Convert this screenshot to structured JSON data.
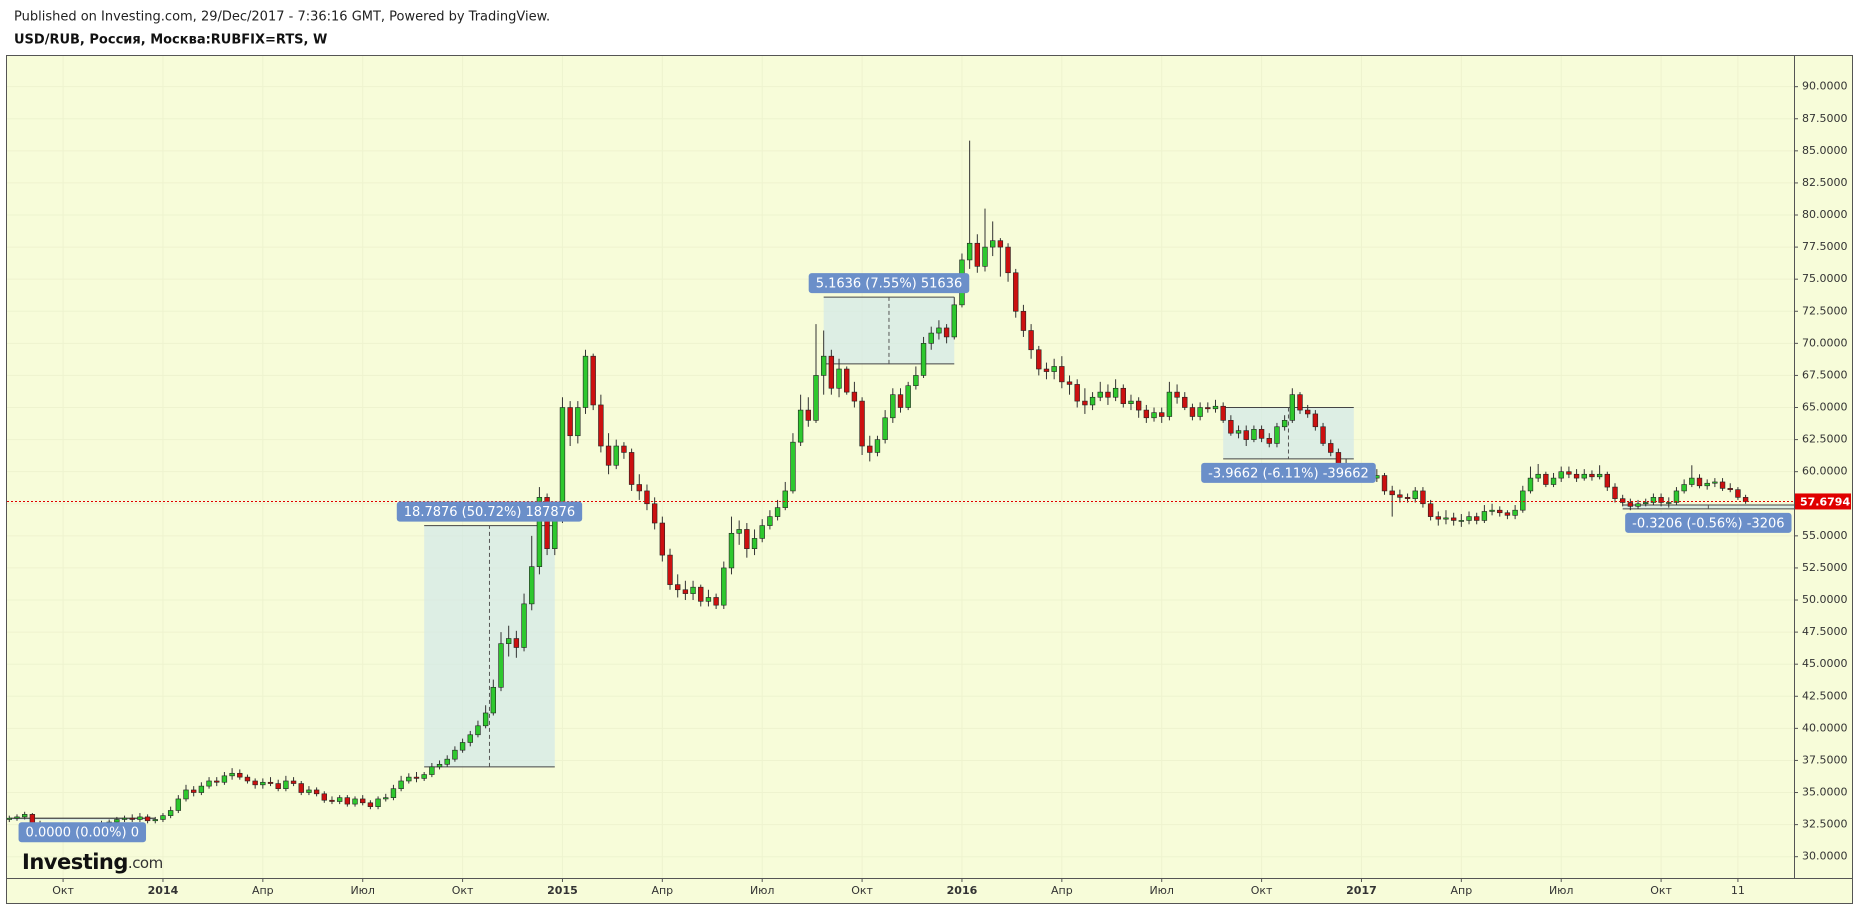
{
  "header": {
    "published": "Published on Investing.com, 29/Dec/2017 - 7:36:16 GMT, Powered by TradingView.",
    "symbol": "USD/RUB, Россия, Москва:RUBFIX=RTS, W"
  },
  "logo": {
    "main": "Investing",
    "suffix": ".com"
  },
  "chart_data": {
    "type": "candlestick",
    "open": [
      32.9,
      33.0,
      33.1,
      33.3,
      32.6,
      32.2,
      32.1,
      32.0,
      32.1,
      32.3,
      32.1,
      32.2,
      32.4,
      32.6,
      32.7,
      32.9,
      33.0,
      32.9,
      33.1,
      32.8,
      32.9,
      33.2,
      33.6,
      34.5,
      35.2,
      35.0,
      35.5,
      35.9,
      35.8,
      36.3,
      36.5,
      36.2,
      35.9,
      35.6,
      35.8,
      35.7,
      35.3,
      35.9,
      35.7,
      35.0,
      35.2,
      34.9,
      34.4,
      34.3,
      34.6,
      34.1,
      34.5,
      34.2,
      33.9,
      34.5,
      34.6,
      35.3,
      35.9,
      36.2,
      36.1,
      36.4,
      37.0,
      37.2,
      37.6,
      38.3,
      38.9,
      39.5,
      40.2,
      41.2,
      43.2,
      46.6,
      47.0,
      46.3,
      49.7,
      52.6,
      58.0,
      54.0,
      56.2,
      65.0,
      62.8,
      65.0,
      69.0,
      65.2,
      62.0,
      60.5,
      62.0,
      61.5,
      59.0,
      58.5,
      57.5,
      56.0,
      53.5,
      51.2,
      50.8,
      50.5,
      51.0,
      49.9,
      50.2,
      49.6,
      52.5,
      55.2,
      55.5,
      54.0,
      54.8,
      55.8,
      56.5,
      57.2,
      58.5,
      62.3,
      64.8,
      64.0,
      67.5,
      69.0,
      66.5,
      68.0,
      66.2,
      65.5,
      62.0,
      61.5,
      62.5,
      64.2,
      66.0,
      65.0,
      66.7,
      67.5,
      70.0,
      70.8,
      71.2,
      70.5,
      73.0,
      76.5,
      77.8,
      76.0,
      77.5,
      78.0,
      77.5,
      75.5,
      72.5,
      71.0,
      69.5,
      68.0,
      67.8,
      68.2,
      67.0,
      66.8,
      65.5,
      65.2,
      65.8,
      66.2,
      65.8,
      66.5,
      65.3,
      65.5,
      64.8,
      64.2,
      64.6,
      64.3,
      66.2,
      65.8,
      65.0,
      64.3,
      65.0,
      64.9,
      65.1,
      64.0,
      63.0,
      63.2,
      62.5,
      63.3,
      62.6,
      62.2,
      63.5,
      64.0,
      66.0,
      64.8,
      64.5,
      63.5,
      62.2,
      61.5,
      60.5,
      60.2,
      59.8,
      59.8,
      59.5,
      59.7,
      58.5,
      58.2,
      58.0,
      57.9,
      58.5,
      57.5,
      56.5,
      56.3,
      56.4,
      56.2,
      56.2,
      56.5,
      56.2,
      56.9,
      57.0,
      56.8,
      56.6,
      57.0,
      58.5,
      59.5,
      59.8,
      59.0,
      59.5,
      60.0,
      59.8,
      59.5,
      59.8,
      59.6,
      59.8,
      58.8,
      57.9,
      57.6,
      57.3,
      57.5,
      57.6,
      58.0,
      57.6,
      57.6,
      58.5,
      59.0,
      59.5,
      58.9,
      59.1,
      59.2,
      58.7,
      58.6,
      58.0
    ],
    "high": [
      33.2,
      33.3,
      33.5,
      33.4,
      32.8,
      32.4,
      32.3,
      32.4,
      32.5,
      32.5,
      32.4,
      32.6,
      32.8,
      32.9,
      33.1,
      33.2,
      33.3,
      33.4,
      33.3,
      33.1,
      33.4,
      33.9,
      34.8,
      35.6,
      35.5,
      35.8,
      36.2,
      36.2,
      36.6,
      36.9,
      36.8,
      36.4,
      36.1,
      36.1,
      36.2,
      36.0,
      36.3,
      36.2,
      35.9,
      35.5,
      35.4,
      35.1,
      34.7,
      34.8,
      34.8,
      34.7,
      34.8,
      34.4,
      34.7,
      34.9,
      35.6,
      36.3,
      36.5,
      36.6,
      36.6,
      37.3,
      37.5,
      37.9,
      38.6,
      39.2,
      39.8,
      40.6,
      41.8,
      43.8,
      47.5,
      48.0,
      47.6,
      50.5,
      55.0,
      58.8,
      58.3,
      57.0,
      65.8,
      65.5,
      65.5,
      69.5,
      69.2,
      66.0,
      63.0,
      62.5,
      62.3,
      61.8,
      59.8,
      59.0,
      58.0,
      56.5,
      54.0,
      52.0,
      51.5,
      51.5,
      51.2,
      50.8,
      50.5,
      53.0,
      56.5,
      56.2,
      56.0,
      55.5,
      56.3,
      57.0,
      57.8,
      59.2,
      63.0,
      66.0,
      65.8,
      71.5,
      71.0,
      69.5,
      68.8,
      68.2,
      67.0,
      65.8,
      62.8,
      62.8,
      64.8,
      66.5,
      66.5,
      67.0,
      68.2,
      70.5,
      71.3,
      71.8,
      71.5,
      73.6,
      77.0,
      85.8,
      78.5,
      80.5,
      79.5,
      78.2,
      77.8,
      75.8,
      73.0,
      71.5,
      69.8,
      68.5,
      68.8,
      69.0,
      67.5,
      67.2,
      66.5,
      66.2,
      67.0,
      66.8,
      67.2,
      66.8,
      66.0,
      65.8,
      65.2,
      65.0,
      65.0,
      67.0,
      66.8,
      66.2,
      65.3,
      65.4,
      65.4,
      65.6,
      65.4,
      64.4,
      63.6,
      63.6,
      63.6,
      63.6,
      63.0,
      63.8,
      64.4,
      66.5,
      66.2,
      65.2,
      64.8,
      63.8,
      62.5,
      61.8,
      61.0,
      60.6,
      60.3,
      60.2,
      60.2,
      59.9,
      58.9,
      58.6,
      58.3,
      58.8,
      58.8,
      57.8,
      56.9,
      57.0,
      56.8,
      56.7,
      56.9,
      56.8,
      57.4,
      57.5,
      57.3,
      57.0,
      57.4,
      58.9,
      60.4,
      60.6,
      60.0,
      59.9,
      60.4,
      60.4,
      60.2,
      60.2,
      60.1,
      60.5,
      60.0,
      59.1,
      58.2,
      57.9,
      57.8,
      57.9,
      58.3,
      58.3,
      58.0,
      58.8,
      59.4,
      60.5,
      59.8,
      59.4,
      59.5,
      59.5,
      59.1,
      58.8,
      58.2
    ],
    "low": [
      32.7,
      32.8,
      32.9,
      32.4,
      32.0,
      31.9,
      31.8,
      31.8,
      31.9,
      31.9,
      31.9,
      32.0,
      32.2,
      32.4,
      32.5,
      32.7,
      32.7,
      32.7,
      32.6,
      32.6,
      32.7,
      33.0,
      33.4,
      34.3,
      34.7,
      34.8,
      35.3,
      35.5,
      35.6,
      36.0,
      36.0,
      35.7,
      35.3,
      35.3,
      35.5,
      35.1,
      35.1,
      35.5,
      34.8,
      34.8,
      34.7,
      34.2,
      34.1,
      34.1,
      33.9,
      33.9,
      34.0,
      33.7,
      33.7,
      34.3,
      34.4,
      35.1,
      35.7,
      35.8,
      35.9,
      36.2,
      36.8,
      37.0,
      37.4,
      38.1,
      38.6,
      39.3,
      40.0,
      41.0,
      42.9,
      45.6,
      45.5,
      46.0,
      49.2,
      52.0,
      53.5,
      53.5,
      56.0,
      62.0,
      62.2,
      64.5,
      64.8,
      61.5,
      59.8,
      60.2,
      61.0,
      58.5,
      57.8,
      57.0,
      55.5,
      53.0,
      50.8,
      50.2,
      50.0,
      50.0,
      49.5,
      49.5,
      49.3,
      49.3,
      52.0,
      54.3,
      53.3,
      53.5,
      54.5,
      55.5,
      56.2,
      57.0,
      58.3,
      62.0,
      63.5,
      63.8,
      66.0,
      66.0,
      65.8,
      66.0,
      65.0,
      61.3,
      60.8,
      61.2,
      62.2,
      63.8,
      64.6,
      64.8,
      66.4,
      67.3,
      69.5,
      70.3,
      70.0,
      70.3,
      72.8,
      75.8,
      75.5,
      75.6,
      76.8,
      75.2,
      74.8,
      72.0,
      70.5,
      68.8,
      67.5,
      67.2,
      67.2,
      66.5,
      66.0,
      65.0,
      64.5,
      64.8,
      65.5,
      65.2,
      65.5,
      65.0,
      64.8,
      64.2,
      63.8,
      63.9,
      63.8,
      64.0,
      65.3,
      64.8,
      64.0,
      64.0,
      64.6,
      64.6,
      63.8,
      62.8,
      62.6,
      62.0,
      62.3,
      62.3,
      61.9,
      61.9,
      63.2,
      63.8,
      64.5,
      64.2,
      63.2,
      62.0,
      61.2,
      60.2,
      59.8,
      59.5,
      59.3,
      59.2,
      59.2,
      58.2,
      56.5,
      57.6,
      57.6,
      57.6,
      57.2,
      56.2,
      55.8,
      55.9,
      55.8,
      55.7,
      55.9,
      55.9,
      56.0,
      56.6,
      56.5,
      56.3,
      56.3,
      56.8,
      58.3,
      59.2,
      58.8,
      58.8,
      59.2,
      59.5,
      59.2,
      59.3,
      59.3,
      59.4,
      58.5,
      57.6,
      57.3,
      57.0,
      57.1,
      57.3,
      57.4,
      57.3,
      57.2,
      57.4,
      58.3,
      58.8,
      58.7,
      58.6,
      58.8,
      58.5,
      58.4,
      57.8,
      57.5
    ],
    "close": [
      33.0,
      33.1,
      33.3,
      32.6,
      32.2,
      32.1,
      32.0,
      32.1,
      32.3,
      32.1,
      32.2,
      32.4,
      32.6,
      32.7,
      32.9,
      33.0,
      32.9,
      33.1,
      32.8,
      32.9,
      33.2,
      33.6,
      34.5,
      35.2,
      35.0,
      35.5,
      35.9,
      35.8,
      36.3,
      36.5,
      36.2,
      35.9,
      35.6,
      35.8,
      35.7,
      35.3,
      35.9,
      35.7,
      35.0,
      35.2,
      34.9,
      34.4,
      34.3,
      34.6,
      34.1,
      34.5,
      34.2,
      33.9,
      34.5,
      34.6,
      35.3,
      35.9,
      36.2,
      36.1,
      36.4,
      37.0,
      37.2,
      37.6,
      38.3,
      38.9,
      39.5,
      40.2,
      41.2,
      43.2,
      46.6,
      47.0,
      46.3,
      49.7,
      52.6,
      58.0,
      54.0,
      56.2,
      65.0,
      62.8,
      65.0,
      69.0,
      65.2,
      62.0,
      60.5,
      62.0,
      61.5,
      59.0,
      58.5,
      57.5,
      56.0,
      53.5,
      51.2,
      50.8,
      50.5,
      51.0,
      49.9,
      50.2,
      49.6,
      52.5,
      55.2,
      55.5,
      54.0,
      54.8,
      55.8,
      56.5,
      57.2,
      58.5,
      62.3,
      64.8,
      64.0,
      67.5,
      69.0,
      66.5,
      68.0,
      66.2,
      65.5,
      62.0,
      61.5,
      62.5,
      64.2,
      66.0,
      65.0,
      66.7,
      67.5,
      70.0,
      70.8,
      71.2,
      70.5,
      73.0,
      76.5,
      77.8,
      76.0,
      77.5,
      78.0,
      77.5,
      75.5,
      72.5,
      71.0,
      69.5,
      68.0,
      67.8,
      68.2,
      67.0,
      66.8,
      65.5,
      65.2,
      65.8,
      66.2,
      65.8,
      66.5,
      65.3,
      65.5,
      64.8,
      64.2,
      64.6,
      64.3,
      66.2,
      65.8,
      65.0,
      64.3,
      65.0,
      64.9,
      65.1,
      64.0,
      63.0,
      63.2,
      62.5,
      63.3,
      62.6,
      62.2,
      63.5,
      64.0,
      66.0,
      64.8,
      64.5,
      63.5,
      62.2,
      61.5,
      60.5,
      60.2,
      59.8,
      59.8,
      59.5,
      59.7,
      58.5,
      58.2,
      58.0,
      57.9,
      58.5,
      57.5,
      56.5,
      56.3,
      56.4,
      56.2,
      56.2,
      56.5,
      56.2,
      56.9,
      57.0,
      56.8,
      56.6,
      57.0,
      58.5,
      59.5,
      59.8,
      59.0,
      59.5,
      60.0,
      59.8,
      59.5,
      59.8,
      59.6,
      59.8,
      58.8,
      57.9,
      57.6,
      57.3,
      57.5,
      57.6,
      58.0,
      57.6,
      57.6,
      58.5,
      59.0,
      59.5,
      58.9,
      59.1,
      59.2,
      58.7,
      58.6,
      58.0,
      57.6794
    ],
    "up_color": "#2ec82e",
    "down_color": "#cc1010",
    "last_price_color": "#e00000",
    "ylim": [
      28.34,
      92.39
    ],
    "yticks": [
      {
        "value": 30,
        "label": "30.0000"
      },
      {
        "value": 32.5,
        "label": "32.5000"
      },
      {
        "value": 35,
        "label": "35.0000"
      },
      {
        "value": 37.5,
        "label": "37.5000"
      },
      {
        "value": 40,
        "label": "40.0000"
      },
      {
        "value": 42.5,
        "label": "42.5000"
      },
      {
        "value": 45,
        "label": "45.0000"
      },
      {
        "value": 47.5,
        "label": "47.5000"
      },
      {
        "value": 50,
        "label": "50.0000"
      },
      {
        "value": 52.5,
        "label": "52.5000"
      },
      {
        "value": 55,
        "label": "55.0000"
      },
      {
        "value": 57.5,
        "label": "57.5000"
      },
      {
        "value": 60,
        "label": "60.0000"
      },
      {
        "value": 62.5,
        "label": "62.5000"
      },
      {
        "value": 65,
        "label": "65.0000"
      },
      {
        "value": 67.5,
        "label": "67.5000"
      },
      {
        "value": 70,
        "label": "70.0000"
      },
      {
        "value": 72.5,
        "label": "72.5000"
      },
      {
        "value": 75,
        "label": "75.0000"
      },
      {
        "value": 77.5,
        "label": "77.5000"
      },
      {
        "value": 80,
        "label": "80.0000"
      },
      {
        "value": 82.5,
        "label": "82.5000"
      },
      {
        "value": 85,
        "label": "85.0000"
      },
      {
        "value": 87.5,
        "label": "87.5000"
      },
      {
        "value": 90,
        "label": "90.0000"
      }
    ],
    "xlim": [
      -0.3,
      232.3
    ],
    "xticks": [
      {
        "value": 7,
        "label": "Окт"
      },
      {
        "value": 20,
        "label": "2014"
      },
      {
        "value": 33,
        "label": "Апр"
      },
      {
        "value": 46,
        "label": "Июл"
      },
      {
        "value": 59,
        "label": "Окт"
      },
      {
        "value": 72,
        "label": "2015"
      },
      {
        "value": 85,
        "label": "Апр"
      },
      {
        "value": 98,
        "label": "Июл"
      },
      {
        "value": 111,
        "label": "Окт"
      },
      {
        "value": 124,
        "label": "2016"
      },
      {
        "value": 137,
        "label": "Апр"
      },
      {
        "value": 150,
        "label": "Июл"
      },
      {
        "value": 163,
        "label": "Окт"
      },
      {
        "value": 176,
        "label": "2017"
      },
      {
        "value": 189,
        "label": "Апр"
      },
      {
        "value": 202,
        "label": "Июл"
      },
      {
        "value": 215,
        "label": "Окт"
      },
      {
        "value": 225,
        "label": "11"
      }
    ],
    "grid": true,
    "annotations": [
      {
        "label": "0.0000 (0.00%) 0",
        "x": [
          0,
          19
        ],
        "y": [
          33.0,
          33.0
        ]
      },
      {
        "label": "18.7876 (50.72%) 187876",
        "x": [
          54,
          71
        ],
        "y": [
          37.0,
          55.8
        ]
      },
      {
        "label": "5.1636 (7.55%) 51636",
        "x": [
          106,
          123
        ],
        "y": [
          68.4,
          73.6
        ]
      },
      {
        "label": "-3.9662 (-6.11%) -39662",
        "x": [
          158,
          175
        ],
        "y": [
          65.0,
          61.0
        ]
      },
      {
        "label": "-0.3206 (-0.56%) -3206",
        "x": [
          210,
          234
        ],
        "y": [
          57.4,
          57.1
        ]
      }
    ]
  }
}
